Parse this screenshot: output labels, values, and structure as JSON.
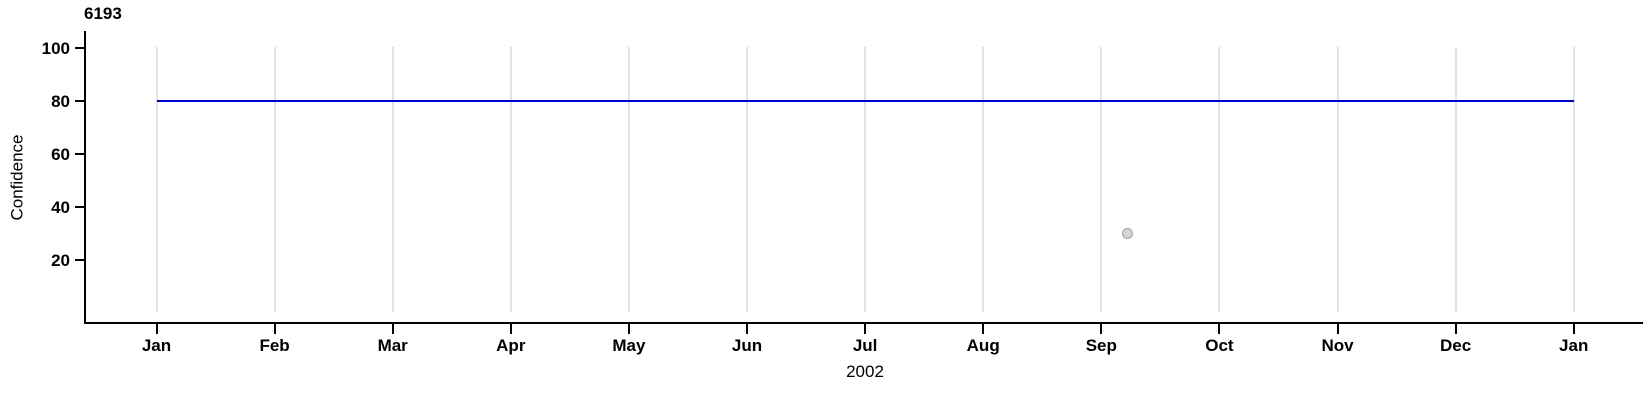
{
  "chart_data": {
    "type": "line",
    "title": "6193",
    "ylabel": "Confidence",
    "xlabel": "2002",
    "x_tick_labels": [
      "Jan",
      "Feb",
      "Mar",
      "Apr",
      "May",
      "Jun",
      "Jul",
      "Aug",
      "Sep",
      "Oct",
      "Nov",
      "Dec",
      "Jan"
    ],
    "y_ticks": [
      20,
      40,
      60,
      80,
      100
    ],
    "ylim": [
      0,
      106
    ],
    "grid": "vertical-only",
    "legend": "none",
    "series": [
      {
        "name": "confidence-threshold-line",
        "type": "line",
        "color": "#0000c8",
        "x_month_span": [
          0,
          12
        ],
        "y_constant": 80
      },
      {
        "name": "outlier-point",
        "type": "scatter",
        "fill_color": "#d4d4d4",
        "stroke_color": "#a0a0a0",
        "points": [
          {
            "x_month_index": 8.22,
            "y": 30
          }
        ]
      }
    ]
  }
}
